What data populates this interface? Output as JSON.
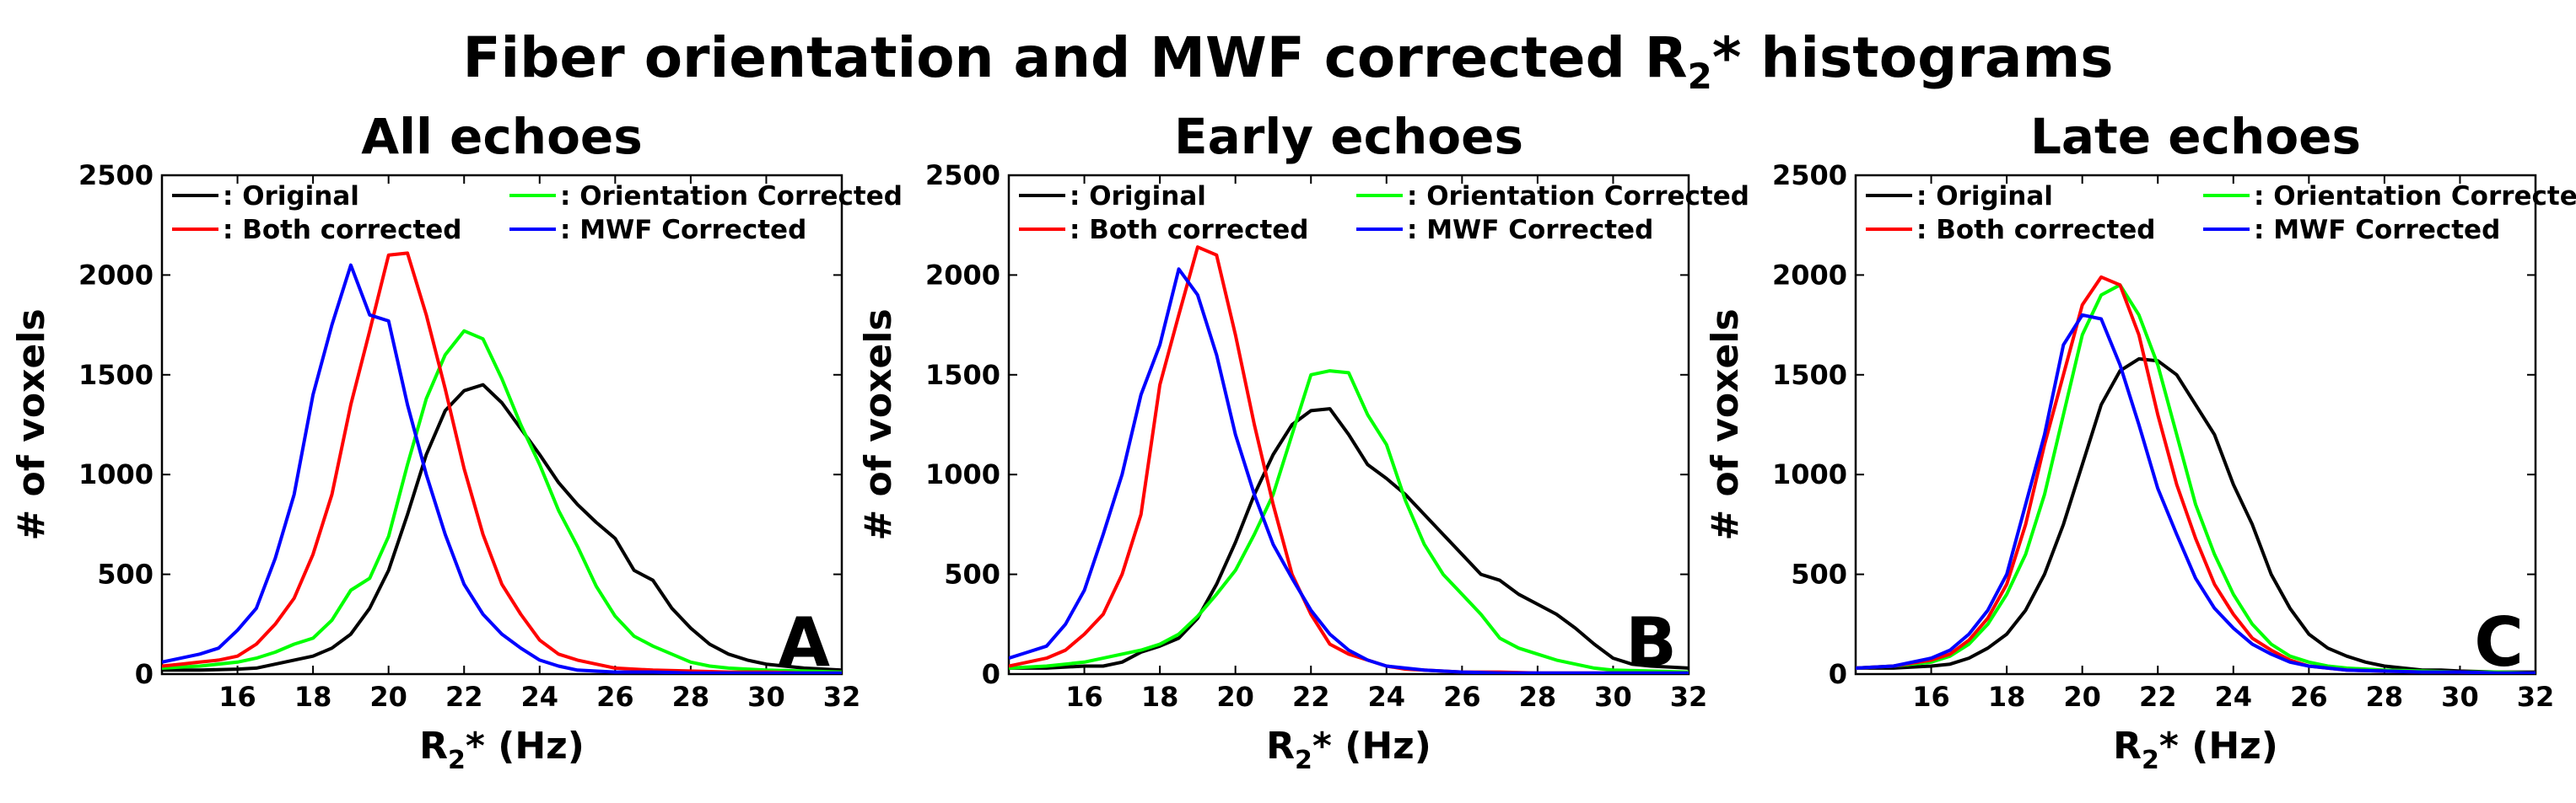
{
  "figure": {
    "title_pre": "Fiber orientation and MWF corrected R",
    "title_sub": "2",
    "title_post": "* histograms"
  },
  "chart_data": [
    {
      "type": "line",
      "title": "All echoes",
      "panel_letter": "A",
      "xlabel_pre": "R",
      "xlabel_sub": "2",
      "xlabel_post": "* (Hz)",
      "ylabel": "# of voxels",
      "xlim": [
        14,
        32
      ],
      "ylim": [
        0,
        2500
      ],
      "xticks": [
        16,
        18,
        20,
        22,
        24,
        26,
        28,
        30,
        32
      ],
      "yticks": [
        0,
        500,
        1000,
        1500,
        2000,
        2500
      ],
      "grid": false,
      "legend_placement": "top",
      "series": [
        {
          "name": ": Original",
          "color": "#000000",
          "x": [
            14,
            15,
            16,
            16.5,
            17,
            17.5,
            18,
            18.5,
            19,
            19.5,
            20,
            20.5,
            21,
            21.5,
            22,
            22.5,
            23,
            23.5,
            24,
            24.5,
            25,
            25.5,
            26,
            26.5,
            27,
            27.5,
            28,
            28.5,
            29,
            29.5,
            30,
            31,
            32
          ],
          "y": [
            20,
            20,
            25,
            30,
            50,
            70,
            90,
            130,
            200,
            330,
            520,
            800,
            1100,
            1320,
            1420,
            1450,
            1360,
            1230,
            1100,
            960,
            850,
            760,
            680,
            520,
            470,
            330,
            230,
            150,
            100,
            70,
            50,
            30,
            20
          ]
        },
        {
          "name": ": Orientation Corrected",
          "color": "#00ff00",
          "x": [
            14,
            15,
            16,
            16.5,
            17,
            17.5,
            18,
            18.5,
            19,
            19.5,
            20,
            20.5,
            21,
            21.5,
            22,
            22.5,
            23,
            23.5,
            24,
            24.5,
            25,
            25.5,
            26,
            26.5,
            27,
            27.5,
            28,
            28.5,
            29,
            29.5,
            30,
            31,
            32
          ],
          "y": [
            30,
            40,
            60,
            80,
            110,
            150,
            180,
            270,
            420,
            480,
            690,
            1050,
            1380,
            1600,
            1720,
            1680,
            1480,
            1250,
            1050,
            820,
            640,
            440,
            290,
            190,
            140,
            100,
            60,
            40,
            30,
            25,
            20,
            15,
            10
          ]
        },
        {
          "name": ": Both corrected",
          "color": "#ff0000",
          "x": [
            14,
            14.5,
            15,
            15.5,
            16,
            16.5,
            17,
            17.5,
            18,
            18.5,
            19,
            19.5,
            20,
            20.5,
            21,
            21.5,
            22,
            22.5,
            23,
            23.5,
            24,
            24.5,
            25,
            25.5,
            26,
            27,
            28,
            29,
            30,
            31,
            32
          ],
          "y": [
            40,
            50,
            60,
            70,
            90,
            150,
            250,
            380,
            600,
            900,
            1350,
            1720,
            2100,
            2110,
            1800,
            1430,
            1030,
            700,
            450,
            300,
            170,
            100,
            70,
            50,
            30,
            20,
            15,
            10,
            10,
            5,
            5
          ]
        },
        {
          "name": ": MWF Corrected",
          "color": "#0000ff",
          "x": [
            14,
            14.5,
            15,
            15.5,
            16,
            16.5,
            17,
            17.5,
            18,
            18.5,
            19,
            19.5,
            20,
            20.5,
            21,
            21.5,
            22,
            22.5,
            23,
            23.5,
            24,
            24.5,
            25,
            26,
            27,
            28,
            29,
            30,
            31,
            32
          ],
          "y": [
            60,
            80,
            100,
            130,
            220,
            330,
            580,
            900,
            1400,
            1750,
            2050,
            1800,
            1770,
            1350,
            1000,
            700,
            450,
            300,
            200,
            130,
            70,
            40,
            20,
            10,
            10,
            5,
            5,
            5,
            5,
            5
          ]
        }
      ]
    },
    {
      "type": "line",
      "title": "Early echoes",
      "panel_letter": "B",
      "xlabel_pre": "R",
      "xlabel_sub": "2",
      "xlabel_post": "* (Hz)",
      "ylabel": "# of voxels",
      "xlim": [
        14,
        32
      ],
      "ylim": [
        0,
        2500
      ],
      "xticks": [
        16,
        18,
        20,
        22,
        24,
        26,
        28,
        30,
        32
      ],
      "yticks": [
        0,
        500,
        1000,
        1500,
        2000,
        2500
      ],
      "grid": false,
      "legend_placement": "top",
      "series": [
        {
          "name": ": Original",
          "color": "#000000",
          "x": [
            14,
            15,
            16,
            16.5,
            17,
            17.5,
            18,
            18.5,
            19,
            19.5,
            20,
            20.5,
            21,
            21.5,
            22,
            22.5,
            23,
            23.5,
            24,
            24.5,
            25,
            25.5,
            26,
            26.5,
            27,
            27.5,
            28,
            28.5,
            29,
            29.5,
            30,
            30.5,
            31,
            32
          ],
          "y": [
            30,
            30,
            40,
            40,
            60,
            110,
            140,
            180,
            280,
            450,
            660,
            900,
            1100,
            1250,
            1320,
            1330,
            1200,
            1050,
            980,
            900,
            800,
            700,
            600,
            500,
            470,
            400,
            350,
            300,
            230,
            150,
            80,
            50,
            40,
            30
          ]
        },
        {
          "name": ": Orientation Corrected",
          "color": "#00ff00",
          "x": [
            14,
            15,
            16,
            16.5,
            17,
            17.5,
            18,
            18.5,
            19,
            19.5,
            20,
            20.5,
            21,
            21.5,
            22,
            22.5,
            23,
            23.5,
            24,
            24.5,
            25,
            25.5,
            26,
            26.5,
            27,
            27.5,
            28,
            28.5,
            29,
            29.5,
            30,
            31,
            32
          ],
          "y": [
            30,
            40,
            60,
            80,
            100,
            120,
            150,
            200,
            290,
            400,
            520,
            700,
            900,
            1200,
            1500,
            1520,
            1510,
            1300,
            1150,
            870,
            650,
            500,
            400,
            300,
            180,
            130,
            100,
            70,
            50,
            30,
            20,
            15,
            10
          ]
        },
        {
          "name": ": Both corrected",
          "color": "#ff0000",
          "x": [
            14,
            14.5,
            15,
            15.5,
            16,
            16.5,
            17,
            17.5,
            18,
            18.5,
            19,
            19.5,
            20,
            20.5,
            21,
            21.5,
            22,
            22.5,
            23,
            23.5,
            24,
            24.5,
            25,
            26,
            27,
            28,
            29,
            30,
            31,
            32
          ],
          "y": [
            40,
            60,
            80,
            120,
            200,
            300,
            500,
            800,
            1450,
            1800,
            2140,
            2100,
            1700,
            1250,
            850,
            500,
            300,
            150,
            100,
            70,
            40,
            25,
            20,
            10,
            10,
            5,
            5,
            5,
            5,
            5
          ]
        },
        {
          "name": ": MWF Corrected",
          "color": "#0000ff",
          "x": [
            14,
            14.5,
            15,
            15.5,
            16,
            16.5,
            17,
            17.5,
            18,
            18.5,
            19,
            19.5,
            20,
            20.5,
            21,
            21.5,
            22,
            22.5,
            23,
            23.5,
            24,
            25,
            26,
            27,
            28,
            29,
            30,
            31,
            32
          ],
          "y": [
            80,
            110,
            140,
            250,
            420,
            700,
            1000,
            1400,
            1650,
            2030,
            1900,
            1600,
            1200,
            900,
            650,
            480,
            320,
            200,
            120,
            70,
            40,
            20,
            10,
            5,
            5,
            5,
            5,
            5,
            5
          ]
        }
      ]
    },
    {
      "type": "line",
      "title": "Late echoes",
      "panel_letter": "C",
      "xlabel_pre": "R",
      "xlabel_sub": "2",
      "xlabel_post": "* (Hz)",
      "ylabel": "# of voxels",
      "xlim": [
        14,
        32
      ],
      "ylim": [
        0,
        2500
      ],
      "xticks": [
        16,
        18,
        20,
        22,
        24,
        26,
        28,
        30,
        32
      ],
      "yticks": [
        0,
        500,
        1000,
        1500,
        2000,
        2500
      ],
      "grid": false,
      "legend_placement": "top",
      "series": [
        {
          "name": ": Original",
          "color": "#000000",
          "x": [
            14,
            15,
            16,
            16.5,
            17,
            17.5,
            18,
            18.5,
            19,
            19.5,
            20,
            20.5,
            21,
            21.5,
            22,
            22.5,
            23,
            23.5,
            24,
            24.5,
            25,
            25.5,
            26,
            26.5,
            27,
            27.5,
            28,
            28.5,
            29,
            29.5,
            30,
            31,
            32
          ],
          "y": [
            30,
            30,
            40,
            50,
            80,
            130,
            200,
            320,
            500,
            750,
            1050,
            1350,
            1520,
            1580,
            1570,
            1500,
            1350,
            1200,
            950,
            750,
            500,
            330,
            200,
            130,
            90,
            60,
            40,
            30,
            20,
            20,
            15,
            10,
            10
          ]
        },
        {
          "name": ": Orientation Corrected",
          "color": "#00ff00",
          "x": [
            14,
            15,
            16,
            16.5,
            17,
            17.5,
            18,
            18.5,
            19,
            19.5,
            20,
            20.5,
            21,
            21.5,
            22,
            22.5,
            23,
            23.5,
            24,
            24.5,
            25,
            25.5,
            26,
            26.5,
            27,
            28,
            29,
            30,
            31,
            32
          ],
          "y": [
            30,
            40,
            60,
            90,
            150,
            250,
            400,
            600,
            900,
            1300,
            1700,
            1900,
            1950,
            1800,
            1550,
            1200,
            850,
            600,
            400,
            250,
            150,
            90,
            60,
            40,
            30,
            20,
            15,
            10,
            10,
            5
          ]
        },
        {
          "name": ": Both corrected",
          "color": "#ff0000",
          "x": [
            14,
            15,
            16,
            16.5,
            17,
            17.5,
            18,
            18.5,
            19,
            19.5,
            20,
            20.5,
            21,
            21.5,
            22,
            22.5,
            23,
            23.5,
            24,
            24.5,
            25,
            25.5,
            26,
            26.5,
            27,
            28,
            29,
            30,
            31,
            32
          ],
          "y": [
            30,
            40,
            70,
            100,
            170,
            280,
            450,
            750,
            1150,
            1500,
            1850,
            1990,
            1950,
            1700,
            1300,
            950,
            680,
            450,
            300,
            180,
            120,
            70,
            40,
            30,
            20,
            15,
            10,
            10,
            5,
            5
          ]
        },
        {
          "name": ": MWF Corrected",
          "color": "#0000ff",
          "x": [
            14,
            15,
            16,
            16.5,
            17,
            17.5,
            18,
            18.5,
            19,
            19.5,
            20,
            20.5,
            21,
            21.5,
            22,
            22.5,
            23,
            23.5,
            24,
            24.5,
            25,
            25.5,
            26,
            27,
            28,
            29,
            30,
            31,
            32
          ],
          "y": [
            30,
            40,
            80,
            120,
            200,
            320,
            500,
            850,
            1200,
            1650,
            1800,
            1780,
            1550,
            1250,
            930,
            700,
            480,
            330,
            230,
            150,
            100,
            60,
            40,
            20,
            15,
            10,
            10,
            5,
            5
          ]
        }
      ]
    }
  ]
}
